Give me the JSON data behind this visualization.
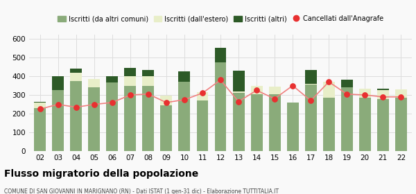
{
  "years": [
    "02",
    "03",
    "04",
    "05",
    "06",
    "07",
    "08",
    "09",
    "10",
    "11",
    "12",
    "13",
    "14",
    "15",
    "16",
    "17",
    "18",
    "19",
    "20",
    "21",
    "22"
  ],
  "iscritti_altri_comuni": [
    230,
    325,
    375,
    340,
    365,
    350,
    350,
    245,
    370,
    270,
    475,
    310,
    305,
    305,
    260,
    355,
    285,
    340,
    285,
    280,
    285
  ],
  "iscritti_estero": [
    30,
    0,
    45,
    45,
    0,
    50,
    50,
    50,
    0,
    45,
    0,
    10,
    45,
    40,
    0,
    5,
    85,
    0,
    50,
    45,
    45
  ],
  "iscritti_altri": [
    5,
    75,
    20,
    0,
    35,
    45,
    35,
    0,
    55,
    0,
    75,
    110,
    0,
    0,
    0,
    75,
    0,
    40,
    0,
    10,
    0
  ],
  "cancellati": [
    225,
    250,
    235,
    250,
    260,
    300,
    305,
    260,
    275,
    310,
    380,
    265,
    325,
    280,
    350,
    270,
    370,
    305,
    300,
    290,
    290
  ],
  "color_comuni": "#8aab7a",
  "color_estero": "#e8eec8",
  "color_altri": "#2d5a27",
  "color_cancellati": "#e83030",
  "color_line": "#f08080",
  "title": "Flusso migratorio della popolazione",
  "subtitle": "COMUNE DI SAN GIOVANNI IN MARIGNANO (RN) - Dati ISTAT (1 gen-31 dic) - Elaborazione TUTTITALIA.IT",
  "ylim": [
    0,
    620
  ],
  "yticks": [
    0,
    100,
    200,
    300,
    400,
    500,
    600
  ],
  "bg_color": "#f9f9f9",
  "grid_color": "#dddddd"
}
